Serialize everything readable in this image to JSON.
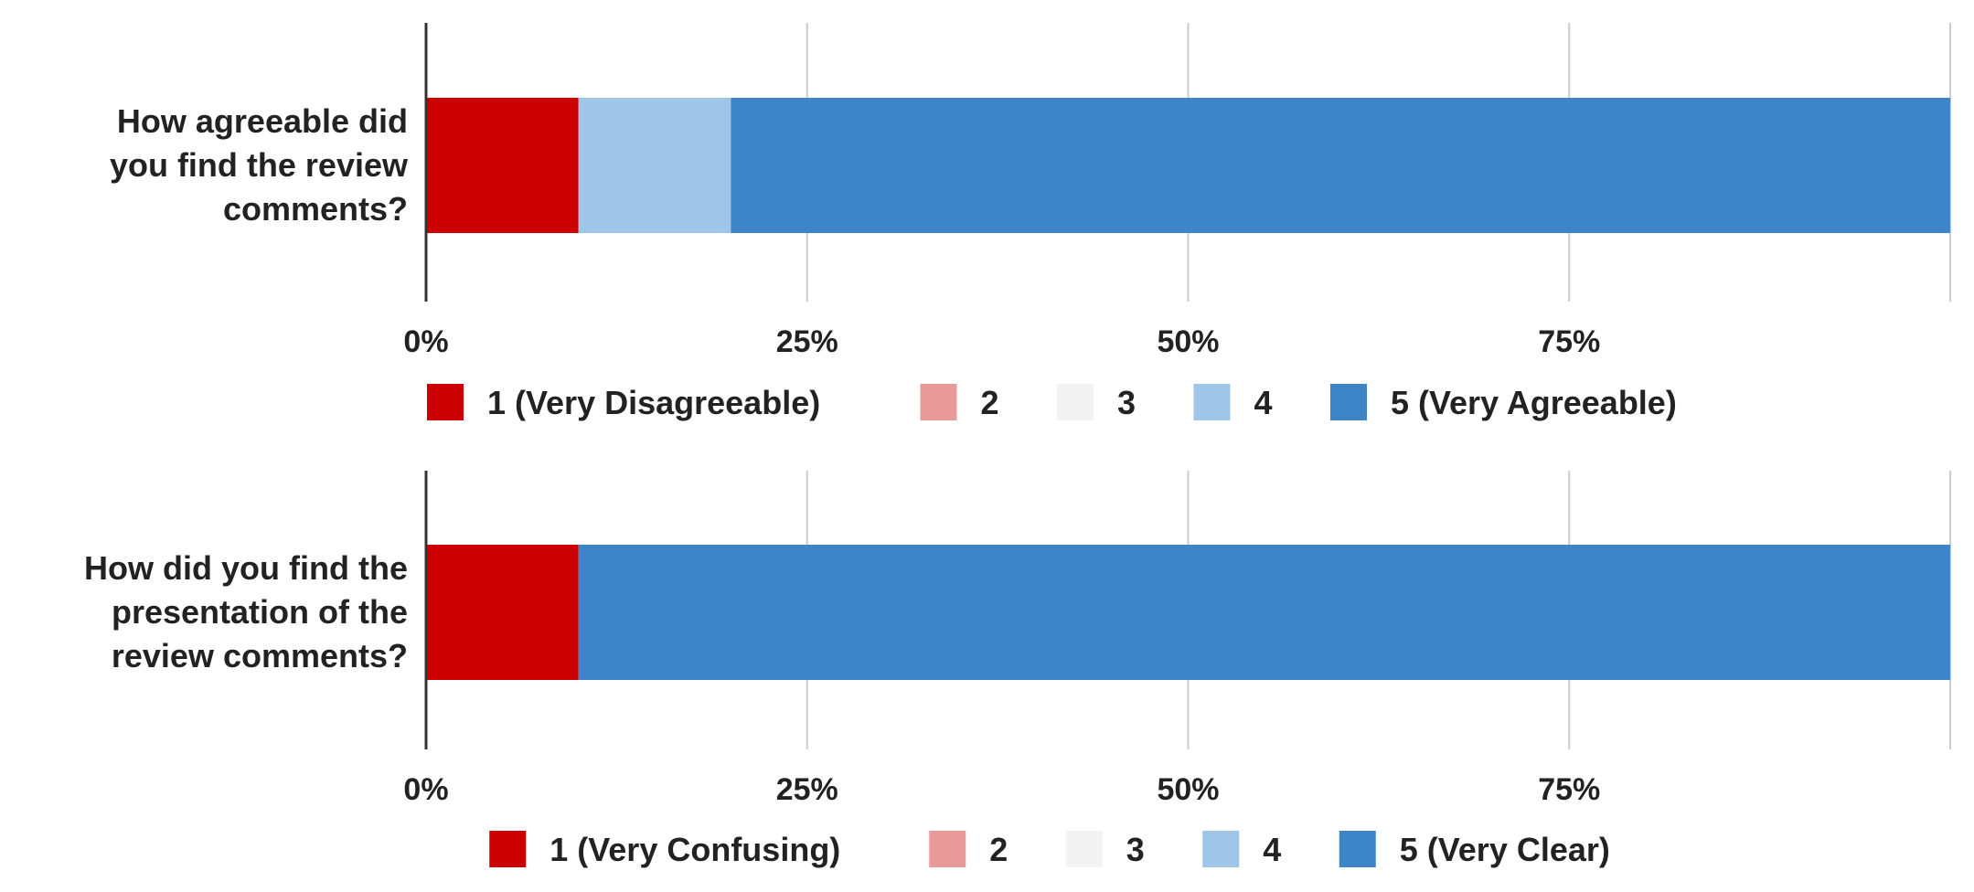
{
  "chart_data": [
    {
      "type": "bar",
      "orientation": "horizontal",
      "stacked": "percent",
      "categories": [
        "How agreeable did you find the review comments?"
      ],
      "category_lines": [
        [
          "How agreeable did",
          "you find the review",
          "comments?"
        ]
      ],
      "series": [
        {
          "name": "1 (Very Disagreeable)",
          "color": "#cc0000",
          "values": [
            10
          ]
        },
        {
          "name": "2",
          "color": "#ea9999",
          "values": [
            0
          ]
        },
        {
          "name": "3",
          "color": "#f3f3f3",
          "values": [
            0
          ]
        },
        {
          "name": "4",
          "color": "#9fc5e8",
          "values": [
            10
          ]
        },
        {
          "name": "5 (Very Agreeable)",
          "color": "#3d85c6",
          "values": [
            80
          ]
        }
      ],
      "xlim": [
        0,
        100
      ],
      "x_ticks": [
        {
          "value": 0,
          "label": "0%"
        },
        {
          "value": 25,
          "label": "25%"
        },
        {
          "value": 50,
          "label": "50%"
        },
        {
          "value": 75,
          "label": "75%"
        }
      ],
      "grid": true,
      "legend_position": "bottom"
    },
    {
      "type": "bar",
      "orientation": "horizontal",
      "stacked": "percent",
      "categories": [
        "How did you find the presentation of the review comments?"
      ],
      "category_lines": [
        [
          "How did you find the",
          "presentation of the",
          "review comments?"
        ]
      ],
      "series": [
        {
          "name": "1 (Very Confusing)",
          "color": "#cc0000",
          "values": [
            10
          ]
        },
        {
          "name": "2",
          "color": "#ea9999",
          "values": [
            0
          ]
        },
        {
          "name": "3",
          "color": "#f3f3f3",
          "values": [
            0
          ]
        },
        {
          "name": "4",
          "color": "#9fc5e8",
          "values": [
            0
          ]
        },
        {
          "name": "5 (Very Clear)",
          "color": "#3d85c6",
          "values": [
            90
          ]
        }
      ],
      "xlim": [
        0,
        100
      ],
      "x_ticks": [
        {
          "value": 0,
          "label": "0%"
        },
        {
          "value": 25,
          "label": "25%"
        },
        {
          "value": 50,
          "label": "50%"
        },
        {
          "value": 75,
          "label": "75%"
        }
      ],
      "grid": true,
      "legend_position": "bottom"
    }
  ]
}
